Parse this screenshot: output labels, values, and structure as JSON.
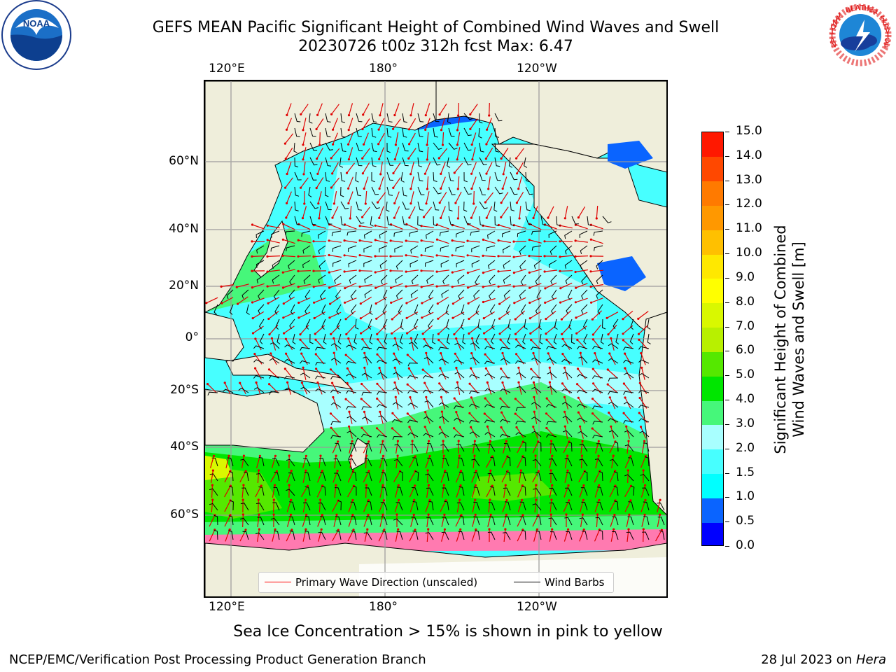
{
  "title": {
    "line1": "GEFS MEAN Pacific Significant Height of Combined Wind Waves and Swell",
    "line2": "20230726 t00z 312h fcst   Max: 6.47"
  },
  "axes": {
    "lon_top": [
      "120°E",
      "180°",
      "120°W"
    ],
    "lon_bottom": [
      "120°E",
      "180°",
      "120°W"
    ],
    "lat": [
      "60°N",
      "40°N",
      "20°N",
      "0°",
      "20°S",
      "40°S",
      "60°S"
    ]
  },
  "legend": {
    "wave_label": "Primary Wave Direction (unscaled)",
    "barb_label": "Wind Barbs",
    "wave_color": "#ff0000",
    "barb_color": "#000000"
  },
  "colorbar": {
    "title_line1": "Significant Height of Combined",
    "title_line2": "Wind Waves and Swell [m]",
    "levels": [
      "0.0",
      "0.5",
      "1.0",
      "1.5",
      "2.0",
      "3.0",
      "4.0",
      "5.0",
      "6.0",
      "7.0",
      "8.0",
      "9.0",
      "10.0",
      "11.0",
      "12.0",
      "13.0",
      "14.0",
      "15.0"
    ],
    "colors": [
      "#0000ff",
      "#0a64ff",
      "#00ffff",
      "#47ffff",
      "#a8ffff",
      "#46f77a",
      "#00e600",
      "#55e800",
      "#b8f000",
      "#d9f800",
      "#ffff00",
      "#ffe800",
      "#ffc000",
      "#ff9800",
      "#ff7a00",
      "#ff4800",
      "#ff1800"
    ]
  },
  "footer": {
    "note": "Sea Ice Concentration > 15% is shown in pink to yellow",
    "credit": "NCEP/EMC/Verification Post Processing Product Generation Branch",
    "date": "28 Jul 2023 on",
    "system": "Hera"
  },
  "logos": {
    "noaa_text": "NOAA",
    "nws_text": "NATIONAL WEATHER SERVICE"
  }
}
